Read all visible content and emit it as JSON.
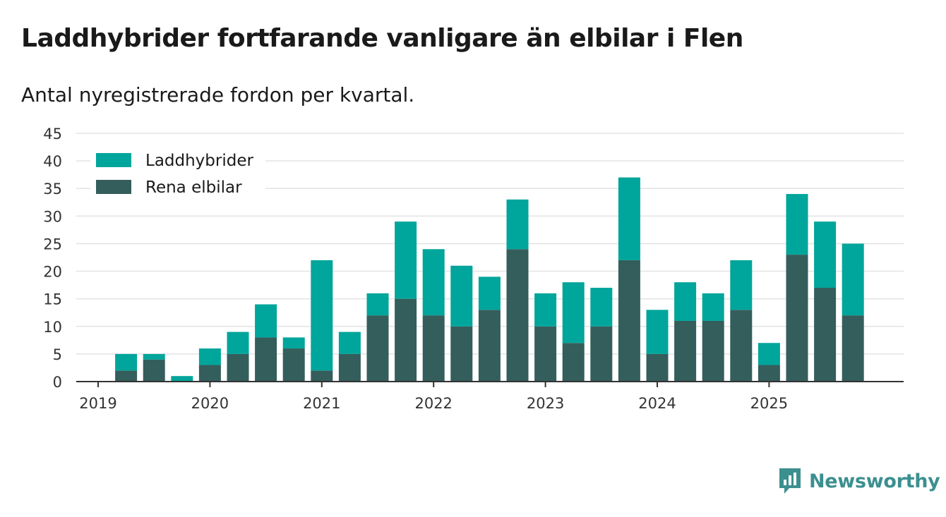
{
  "title": "Laddhybrider fortfarande vanligare än elbilar i Flen",
  "subtitle": "Antal nyregistrerade fordon per kvartal.",
  "brand": {
    "name": "Newsworthy",
    "icon": "newsworthy-logo-icon"
  },
  "colors": {
    "laddhybrider": "#00a59b",
    "rena_elbilar": "#345e5b",
    "grid": "#e3e3e3",
    "axis": "#333333",
    "brand": "#3c8f8f"
  },
  "chart_data": {
    "type": "bar",
    "stacked": true,
    "title": "Laddhybrider fortfarande vanligare än elbilar i Flen",
    "subtitle": "Antal nyregistrerade fordon per kvartal.",
    "xlabel": "",
    "ylabel": "",
    "ylim": [
      0,
      45
    ],
    "yticks": [
      "0",
      "5",
      "10",
      "15",
      "20",
      "25",
      "30",
      "35",
      "40",
      "45"
    ],
    "xticks": [
      "2019",
      "2020",
      "2021",
      "2022",
      "2023",
      "2024",
      "2025"
    ],
    "categories": [
      "2019 Q1",
      "2019 Q2",
      "2019 Q3",
      "2019 Q4",
      "2020 Q1",
      "2020 Q2",
      "2020 Q3",
      "2020 Q4",
      "2021 Q1",
      "2021 Q2",
      "2021 Q3",
      "2021 Q4",
      "2022 Q1",
      "2022 Q2",
      "2022 Q3",
      "2022 Q4",
      "2023 Q1",
      "2023 Q2",
      "2023 Q3",
      "2023 Q4",
      "2024 Q1",
      "2024 Q2",
      "2024 Q3",
      "2024 Q4",
      "2025 Q1",
      "2025 Q2",
      "2025 Q3",
      "2025 Q4"
    ],
    "grid": true,
    "legend_position": "top-left",
    "series": [
      {
        "name": "Rena elbilar",
        "color": "#345e5b",
        "values": [
          0,
          2,
          4,
          0,
          3,
          5,
          8,
          6,
          2,
          5,
          12,
          15,
          12,
          10,
          13,
          24,
          10,
          7,
          10,
          22,
          5,
          11,
          11,
          13,
          3,
          23,
          17,
          12
        ]
      },
      {
        "name": "Laddhybrider",
        "color": "#00a59b",
        "values": [
          0,
          3,
          1,
          1,
          3,
          4,
          6,
          2,
          20,
          4,
          4,
          14,
          12,
          11,
          6,
          9,
          6,
          11,
          7,
          15,
          8,
          7,
          5,
          9,
          4,
          11,
          12,
          13
        ]
      }
    ],
    "legend": [
      "Laddhybrider",
      "Rena elbilar"
    ]
  }
}
